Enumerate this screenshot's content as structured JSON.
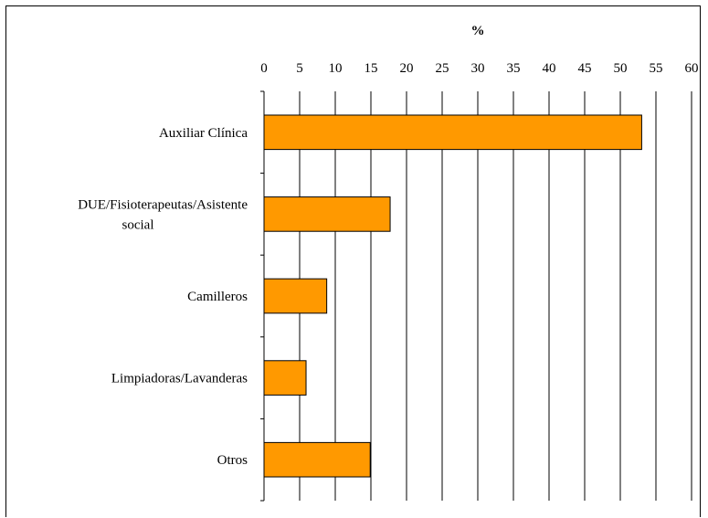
{
  "chart_data": {
    "type": "bar",
    "orientation": "horizontal",
    "title": "",
    "xlabel": "%",
    "ylabel": "",
    "xlim": [
      0,
      60
    ],
    "x_ticks": [
      0,
      5,
      10,
      15,
      20,
      25,
      30,
      35,
      40,
      45,
      50,
      55,
      60
    ],
    "x_axis_position": "top",
    "grid": "vertical",
    "categories": [
      [
        "Auxiliar Clínica"
      ],
      [
        "DUE/Fisioterapeutas/Asistente",
        "social"
      ],
      [
        "Camilleros"
      ],
      [
        "Limpiadoras/Lavanderas"
      ],
      [
        "Otros"
      ]
    ],
    "values": [
      53,
      17.7,
      8.8,
      5.9,
      14.9
    ],
    "bar_color": "#FF9900",
    "bar_edge_color": "#000000"
  }
}
